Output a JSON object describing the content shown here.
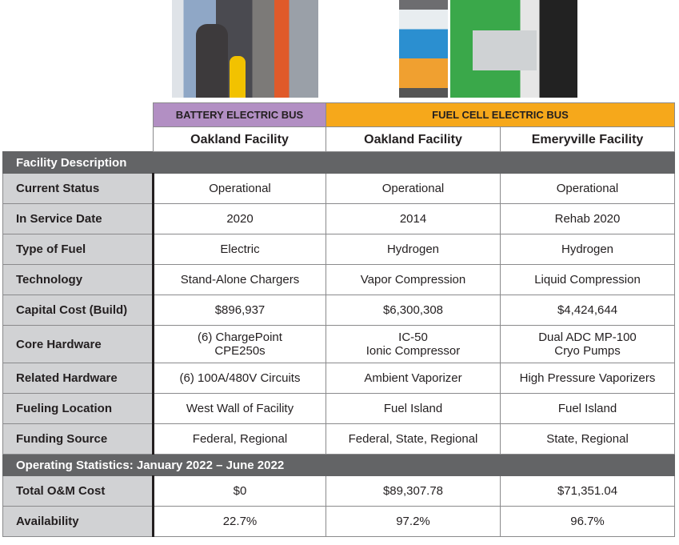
{
  "header": {
    "groups": [
      "BATTERY ELECTRIC BUS",
      "FUEL CELL ELECTRIC BUS"
    ],
    "facilities": [
      "Oakland Facility",
      "Oakland Facility",
      "Emeryville Facility"
    ]
  },
  "colors": {
    "battery": "#b28fc3",
    "fuel_cell": "#f6a81b",
    "section": "#636466",
    "label": "#d1d2d4"
  },
  "sections": [
    {
      "title": "Facility Description",
      "rows": [
        {
          "label": "Current Status",
          "values": [
            "Operational",
            "Operational",
            "Operational"
          ]
        },
        {
          "label": "In Service Date",
          "values": [
            "2020",
            "2014",
            "Rehab 2020"
          ]
        },
        {
          "label": "Type of Fuel",
          "values": [
            "Electric",
            "Hydrogen",
            "Hydrogen"
          ]
        },
        {
          "label": "Technology",
          "values": [
            "Stand-Alone Chargers",
            "Vapor Compression",
            "Liquid Compression"
          ]
        },
        {
          "label": "Capital Cost (Build)",
          "values": [
            "$896,937",
            "$6,300,308",
            "$4,424,644"
          ]
        },
        {
          "label": "Core Hardware",
          "values": [
            [
              "(6) ChargePoint",
              "CPE250s"
            ],
            [
              "IC-50",
              "Ionic Compressor"
            ],
            [
              "Dual ADC MP-100",
              "Cryo Pumps"
            ]
          ]
        },
        {
          "label": "Related Hardware",
          "values": [
            "(6) 100A/480V Circuits",
            "Ambient Vaporizer",
            "High Pressure Vaporizers"
          ]
        },
        {
          "label": "Fueling Location",
          "values": [
            "West Wall of Facility",
            "Fuel Island",
            "Fuel Island"
          ]
        },
        {
          "label": "Funding Source",
          "values": [
            "Federal, Regional",
            "Federal, State, Regional",
            "State, Regional"
          ]
        }
      ]
    },
    {
      "title": "Operating Statistics: January 2022 – June 2022",
      "rows": [
        {
          "label": "Total O&M Cost",
          "values": [
            "$0",
            "$89,307.78",
            "$71,351.04"
          ]
        },
        {
          "label": "Availability",
          "values": [
            "22.7%",
            "97.2%",
            "96.7%"
          ]
        }
      ]
    }
  ]
}
